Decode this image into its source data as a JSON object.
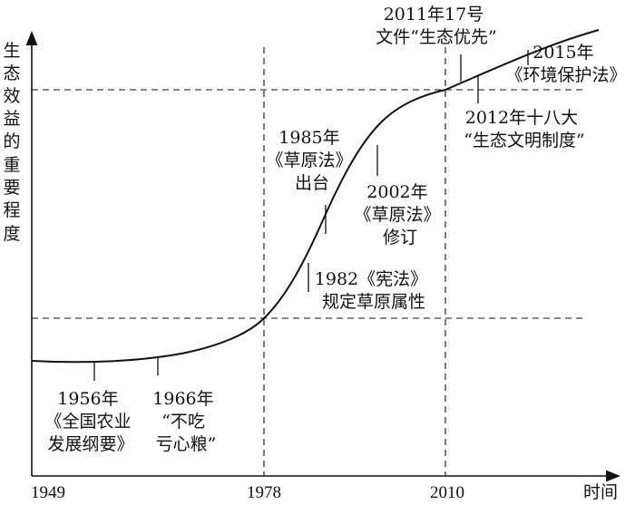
{
  "axes": {
    "y_label_chars": [
      "生",
      "态",
      "效",
      "益",
      "的",
      "重",
      "要",
      "程",
      "度"
    ],
    "x_label": "时间",
    "x_ticks": [
      "1949",
      "1978",
      "2010"
    ]
  },
  "events": [
    {
      "lines": [
        "1956年",
        "《全国农业",
        "发展纲要》"
      ]
    },
    {
      "lines": [
        "1966年",
        "“不吃",
        "亏心粮”"
      ]
    },
    {
      "lines": [
        "1982《宪法》",
        "规定草原属性"
      ]
    },
    {
      "lines": [
        "1985年",
        "《草原法》",
        "出台"
      ]
    },
    {
      "lines": [
        "2002年",
        "《草原法》",
        "修订"
      ]
    },
    {
      "lines": [
        "2011年17号",
        "文件“生态优先”"
      ]
    },
    {
      "lines": [
        "2012年十八大",
        "“生态文明制度”"
      ]
    },
    {
      "lines": [
        "2015年",
        "《环境保护法》"
      ]
    }
  ]
}
